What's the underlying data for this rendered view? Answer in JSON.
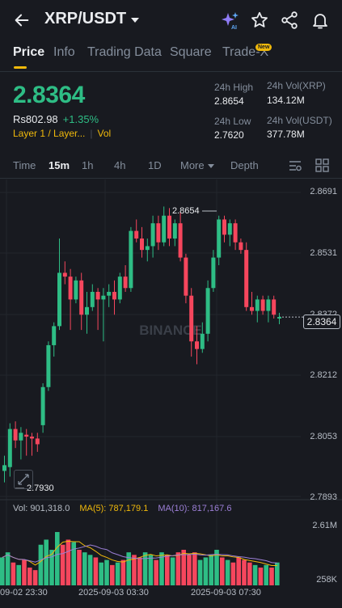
{
  "header": {
    "title": "XRP/USDT",
    "icons": [
      "back-arrow-icon",
      "ai-sparkle-icon",
      "star-icon",
      "share-icon",
      "bell-icon"
    ]
  },
  "tabs": [
    {
      "label": "Price",
      "active": true
    },
    {
      "label": "Info"
    },
    {
      "label": "Trading Data"
    },
    {
      "label": "Square"
    },
    {
      "label": "Trade-X",
      "badge": "New"
    }
  ],
  "ticker": {
    "price": "2.8364",
    "fiat": "Rs802.98",
    "change": "+1.35%",
    "tag_layer": "Layer 1 / Layer...",
    "tag_vol": "Vol",
    "high_label": "24h High",
    "high_value": "2.8654",
    "low_label": "24h Low",
    "low_value": "2.7620",
    "vol_xrp_label": "24h Vol(XRP)",
    "vol_xrp_value": "134.12M",
    "vol_usdt_label": "24h Vol(USDT)",
    "vol_usdt_value": "377.78M"
  },
  "timeframes": {
    "time": "Time",
    "m15": "15m",
    "h1": "1h",
    "h4": "4h",
    "d1": "1D",
    "more": "More",
    "depth": "Depth",
    "active": "15m"
  },
  "colors": {
    "up": "#2ebd85",
    "down": "#f6465d",
    "accent": "#f0b90b",
    "ma5": "#f0b90b",
    "ma10": "#9c7fd6"
  },
  "chart": {
    "watermark": "BINANCE",
    "price_ticks": [
      "2.8691",
      "2.8531",
      "2.8372",
      "2.8212",
      "2.8053",
      "2.7893"
    ],
    "current_price_label": "2.8364",
    "high_marker": "2.8654",
    "low_marker": "2.7930",
    "vol_ticks": [
      "2.61M",
      "258K"
    ],
    "vol_legend": {
      "vol": "Vol: 901,318.0",
      "ma5": "MA(5): 787,179.1",
      "ma10": "MA(10): 817,167.6"
    },
    "time_labels": [
      "09-02 23:30",
      "2025-09-03 03:30",
      "2025-09-03 07:30"
    ]
  },
  "chart_data": {
    "type": "candlestick",
    "ylim": [
      2.7893,
      2.8691
    ],
    "candles": [
      {
        "o": 2.796,
        "h": 2.8,
        "l": 2.793,
        "c": 2.7975
      },
      {
        "o": 2.797,
        "h": 2.8085,
        "l": 2.7945,
        "c": 2.807
      },
      {
        "o": 2.807,
        "h": 2.809,
        "l": 2.802,
        "c": 2.804
      },
      {
        "o": 2.804,
        "h": 2.8075,
        "l": 2.799,
        "c": 2.806
      },
      {
        "o": 2.8055,
        "h": 2.807,
        "l": 2.8,
        "c": 2.805
      },
      {
        "o": 2.805,
        "h": 2.806,
        "l": 2.8,
        "c": 2.8045
      },
      {
        "o": 2.8045,
        "h": 2.806,
        "l": 2.801,
        "c": 2.803
      },
      {
        "o": 2.808,
        "h": 2.819,
        "l": 2.806,
        "c": 2.818
      },
      {
        "o": 2.818,
        "h": 2.83,
        "l": 2.817,
        "c": 2.829
      },
      {
        "o": 2.829,
        "h": 2.835,
        "l": 2.826,
        "c": 2.834
      },
      {
        "o": 2.834,
        "h": 2.857,
        "l": 2.833,
        "c": 2.848
      },
      {
        "o": 2.848,
        "h": 2.851,
        "l": 2.845,
        "c": 2.847
      },
      {
        "o": 2.847,
        "h": 2.849,
        "l": 2.833,
        "c": 2.841
      },
      {
        "o": 2.841,
        "h": 2.847,
        "l": 2.84,
        "c": 2.846
      },
      {
        "o": 2.846,
        "h": 2.848,
        "l": 2.833,
        "c": 2.837
      },
      {
        "o": 2.837,
        "h": 2.843,
        "l": 2.832,
        "c": 2.839
      },
      {
        "o": 2.839,
        "h": 2.845,
        "l": 2.838,
        "c": 2.843
      },
      {
        "o": 2.843,
        "h": 2.844,
        "l": 2.833,
        "c": 2.841
      },
      {
        "o": 2.841,
        "h": 2.844,
        "l": 2.83,
        "c": 2.842
      },
      {
        "o": 2.842,
        "h": 2.845,
        "l": 2.839,
        "c": 2.843
      },
      {
        "o": 2.843,
        "h": 2.846,
        "l": 2.837,
        "c": 2.841
      },
      {
        "o": 2.841,
        "h": 2.848,
        "l": 2.84,
        "c": 2.847
      },
      {
        "o": 2.847,
        "h": 2.85,
        "l": 2.843,
        "c": 2.844
      },
      {
        "o": 2.844,
        "h": 2.86,
        "l": 2.843,
        "c": 2.859
      },
      {
        "o": 2.859,
        "h": 2.862,
        "l": 2.856,
        "c": 2.857
      },
      {
        "o": 2.857,
        "h": 2.86,
        "l": 2.852,
        "c": 2.854
      },
      {
        "o": 2.854,
        "h": 2.857,
        "l": 2.851,
        "c": 2.855
      },
      {
        "o": 2.855,
        "h": 2.863,
        "l": 2.852,
        "c": 2.861
      },
      {
        "o": 2.861,
        "h": 2.863,
        "l": 2.854,
        "c": 2.856
      },
      {
        "o": 2.856,
        "h": 2.8654,
        "l": 2.855,
        "c": 2.863
      },
      {
        "o": 2.863,
        "h": 2.865,
        "l": 2.855,
        "c": 2.857
      },
      {
        "o": 2.857,
        "h": 2.862,
        "l": 2.855,
        "c": 2.861
      },
      {
        "o": 2.861,
        "h": 2.864,
        "l": 2.851,
        "c": 2.852
      },
      {
        "o": 2.852,
        "h": 2.853,
        "l": 2.84,
        "c": 2.842
      },
      {
        "o": 2.842,
        "h": 2.844,
        "l": 2.826,
        "c": 2.83
      },
      {
        "o": 2.83,
        "h": 2.834,
        "l": 2.824,
        "c": 2.828
      },
      {
        "o": 2.828,
        "h": 2.835,
        "l": 2.827,
        "c": 2.832
      },
      {
        "o": 2.832,
        "h": 2.846,
        "l": 2.83,
        "c": 2.844
      },
      {
        "o": 2.844,
        "h": 2.854,
        "l": 2.843,
        "c": 2.852
      },
      {
        "o": 2.852,
        "h": 2.863,
        "l": 2.85,
        "c": 2.862
      },
      {
        "o": 2.862,
        "h": 2.863,
        "l": 2.856,
        "c": 2.858
      },
      {
        "o": 2.858,
        "h": 2.862,
        "l": 2.855,
        "c": 2.861
      },
      {
        "o": 2.861,
        "h": 2.862,
        "l": 2.854,
        "c": 2.856
      },
      {
        "o": 2.856,
        "h": 2.857,
        "l": 2.853,
        "c": 2.854
      },
      {
        "o": 2.854,
        "h": 2.856,
        "l": 2.838,
        "c": 2.839
      },
      {
        "o": 2.839,
        "h": 2.843,
        "l": 2.837,
        "c": 2.838
      },
      {
        "o": 2.838,
        "h": 2.842,
        "l": 2.835,
        "c": 2.841
      },
      {
        "o": 2.841,
        "h": 2.842,
        "l": 2.837,
        "c": 2.838
      },
      {
        "o": 2.838,
        "h": 2.842,
        "l": 2.835,
        "c": 2.841
      },
      {
        "o": 2.841,
        "h": 2.842,
        "l": 2.836,
        "c": 2.837
      },
      {
        "o": 2.836,
        "h": 2.8375,
        "l": 2.8345,
        "c": 2.8364
      }
    ],
    "volumes": [
      1.1,
      1.3,
      0.9,
      0.8,
      1.0,
      0.7,
      0.6,
      1.6,
      1.8,
      1.4,
      2.1,
      1.6,
      1.8,
      1.7,
      1.4,
      1.3,
      1.2,
      1.1,
      0.9,
      1.0,
      0.8,
      0.9,
      1.0,
      1.3,
      1.2,
      1.1,
      1.3,
      1.2,
      1.0,
      1.3,
      1.2,
      1.1,
      1.3,
      1.4,
      1.2,
      1.3,
      1.0,
      1.1,
      1.2,
      1.4,
      1.1,
      1.0,
      0.9,
      1.1,
      1.0,
      0.9,
      0.8,
      0.7,
      0.8,
      0.7,
      0.9
    ],
    "volume_unit": "M",
    "volume_range": [
      0.258,
      2.61
    ]
  }
}
